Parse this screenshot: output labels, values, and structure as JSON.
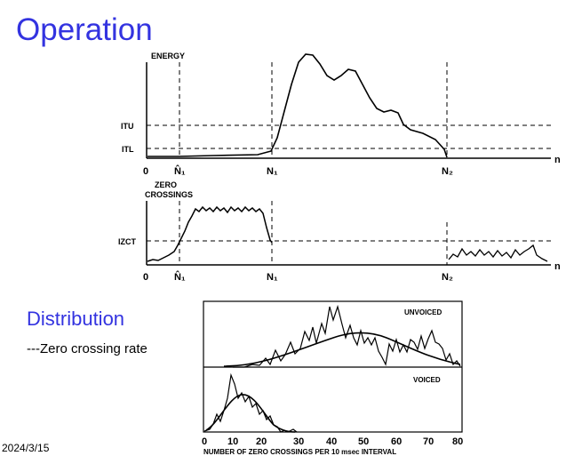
{
  "slide": {
    "title": "Operation",
    "subtitle": "Distribution",
    "bullet": "---Zero crossing rate",
    "date": "2024/3/15"
  },
  "energy_plot": {
    "ylabel": "ENERGY",
    "itu": "ITU",
    "itl": "ITL",
    "origin": "0",
    "n1_hat": "N̂₁",
    "n1": "N₁",
    "n2": "N₂",
    "n_axis": "n"
  },
  "zc_plot": {
    "ylabel_line1": "ZERO",
    "ylabel_line2": "CROSSINGS",
    "izct": "IZCT",
    "origin": "0",
    "n1_hat": "N̂₁",
    "n1": "N₁",
    "n2": "N₂",
    "n_axis": "n"
  },
  "histogram": {
    "unvoiced_label": "UNVOICED",
    "voiced_label": "VOICED",
    "xlabel": "NUMBER OF ZERO CROSSINGS PER 10 msec INTERVAL",
    "ticks": [
      "0",
      "10",
      "20",
      "30",
      "40",
      "50",
      "60",
      "70",
      "80"
    ]
  }
}
